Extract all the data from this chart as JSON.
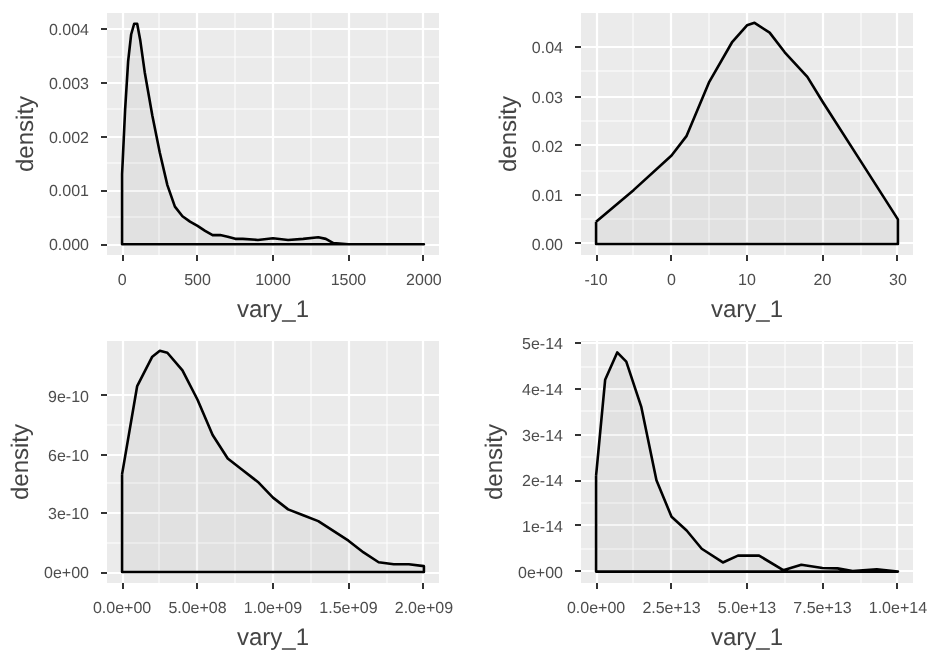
{
  "chart_data": [
    {
      "type": "area",
      "xlabel": "vary_1",
      "ylabel": "density",
      "grid": true,
      "color": "#000000",
      "x": [
        0,
        20,
        40,
        60,
        80,
        100,
        120,
        150,
        200,
        250,
        300,
        350,
        400,
        450,
        500,
        550,
        600,
        650,
        700,
        750,
        800,
        900,
        1000,
        1100,
        1200,
        1300,
        1350,
        1400,
        1500,
        2000
      ],
      "values": [
        0.0013,
        0.0025,
        0.0034,
        0.0039,
        0.0041,
        0.0041,
        0.0038,
        0.0032,
        0.0024,
        0.0017,
        0.0011,
        0.0007,
        0.00052,
        0.00042,
        0.00034,
        0.00025,
        0.00017,
        0.00017,
        0.00014,
        0.0001,
        0.0001,
        8e-05,
        0.00011,
        8e-05,
        0.0001,
        0.00013,
        0.0001,
        2e-05,
        0,
        0
      ],
      "xlim": [
        -100,
        2100
      ],
      "ylim": [
        -0.0002,
        0.0043
      ],
      "xticks": [
        0,
        500,
        1000,
        1500,
        2000
      ],
      "yticks": [
        {
          "value": 0,
          "label": "0.000"
        },
        {
          "value": 0.001,
          "label": "0.001"
        },
        {
          "value": 0.002,
          "label": "0.002"
        },
        {
          "value": 0.003,
          "label": "0.003"
        },
        {
          "value": 0.004,
          "label": "0.004"
        }
      ]
    },
    {
      "type": "area",
      "xlabel": "vary_1",
      "ylabel": "density",
      "grid": true,
      "color": "#000000",
      "x": [
        -10,
        -5,
        0,
        2,
        5,
        8,
        10,
        11,
        13,
        15,
        18,
        20,
        25,
        30
      ],
      "values": [
        0.0045,
        0.011,
        0.018,
        0.022,
        0.033,
        0.041,
        0.0445,
        0.045,
        0.043,
        0.039,
        0.034,
        0.029,
        0.017,
        0.005
      ],
      "xlim": [
        -12,
        32
      ],
      "ylim": [
        -0.00225,
        0.047
      ],
      "xticks": [
        -10,
        0,
        10,
        20,
        30
      ],
      "yticks": [
        {
          "value": 0,
          "label": "0.00"
        },
        {
          "value": 0.01,
          "label": "0.01"
        },
        {
          "value": 0.02,
          "label": "0.02"
        },
        {
          "value": 0.03,
          "label": "0.03"
        },
        {
          "value": 0.04,
          "label": "0.04"
        }
      ]
    },
    {
      "type": "area",
      "xlabel": "vary_1",
      "ylabel": "density",
      "grid": true,
      "color": "#000000",
      "x": [
        0,
        100000000,
        200000000,
        250000000,
        300000000,
        400000000,
        500000000,
        600000000,
        700000000,
        800000000,
        900000000,
        1000000000,
        1100000000,
        1200000000,
        1300000000,
        1400000000,
        1500000000,
        1600000000,
        1700000000,
        1800000000,
        1900000000,
        2000000000
      ],
      "values": [
        5e-10,
        9.5e-10,
        1.1e-09,
        1.13e-09,
        1.12e-09,
        1.03e-09,
        8.8e-10,
        7e-10,
        5.8e-10,
        5.2e-10,
        4.6e-10,
        3.8e-10,
        3.2e-10,
        2.9e-10,
        2.6e-10,
        2.1e-10,
        1.6e-10,
        1e-10,
        5e-11,
        4e-11,
        4e-11,
        3e-11
      ],
      "xlim": [
        -100000000,
        2100000000
      ],
      "ylim": [
        -5.6e-11,
        1.18e-09
      ],
      "xticks": [
        {
          "value": 0,
          "label": "0.0e+00"
        },
        {
          "value": 500000000,
          "label": "5.0e+08"
        },
        {
          "value": 1000000000,
          "label": "1.0e+09"
        },
        {
          "value": 1500000000,
          "label": "1.5e+09"
        },
        {
          "value": 2000000000,
          "label": "2.0e+09"
        }
      ],
      "yticks": [
        {
          "value": 0,
          "label": "0e+00"
        },
        {
          "value": 3e-10,
          "label": "3e-10"
        },
        {
          "value": 6e-10,
          "label": "6e-10"
        },
        {
          "value": 9e-10,
          "label": "9e-10"
        }
      ]
    },
    {
      "type": "area",
      "xlabel": "vary_1",
      "ylabel": "density",
      "grid": true,
      "color": "#000000",
      "x": [
        0,
        3000000000000,
        7000000000000,
        10000000000000,
        15000000000000,
        20000000000000,
        25000000000000,
        30000000000000,
        35000000000000,
        42000000000000,
        47000000000000,
        54000000000000,
        62000000000000,
        68000000000000,
        75000000000000,
        80000000000000,
        85000000000000,
        93000000000000,
        100000000000000
      ],
      "values": [
        2.1e-14,
        4.2e-14,
        4.8e-14,
        4.6e-14,
        3.6e-14,
        2e-14,
        1.2e-14,
        9e-15,
        5e-15,
        2e-15,
        3.5e-15,
        3.5e-15,
        3e-16,
        1.5e-15,
        8e-16,
        7e-16,
        1e-16,
        5e-16,
        0
      ],
      "xlim": [
        -5000000000000,
        105000000000000
      ],
      "ylim": [
        -2.5e-15,
        5.05e-14
      ],
      "xticks": [
        {
          "value": 0,
          "label": "0.0e+00"
        },
        {
          "value": 25000000000000,
          "label": "2.5e+13"
        },
        {
          "value": 50000000000000,
          "label": "5.0e+13"
        },
        {
          "value": 75000000000000,
          "label": "7.5e+13"
        },
        {
          "value": 100000000000000,
          "label": "1.0e+14"
        }
      ],
      "yticks": [
        {
          "value": 0,
          "label": "0e+00"
        },
        {
          "value": 1e-14,
          "label": "1e-14"
        },
        {
          "value": 2e-14,
          "label": "2e-14"
        },
        {
          "value": 3e-14,
          "label": "3e-14"
        },
        {
          "value": 4e-14,
          "label": "4e-14"
        },
        {
          "value": 5e-14,
          "label": "5e-14"
        }
      ]
    }
  ]
}
